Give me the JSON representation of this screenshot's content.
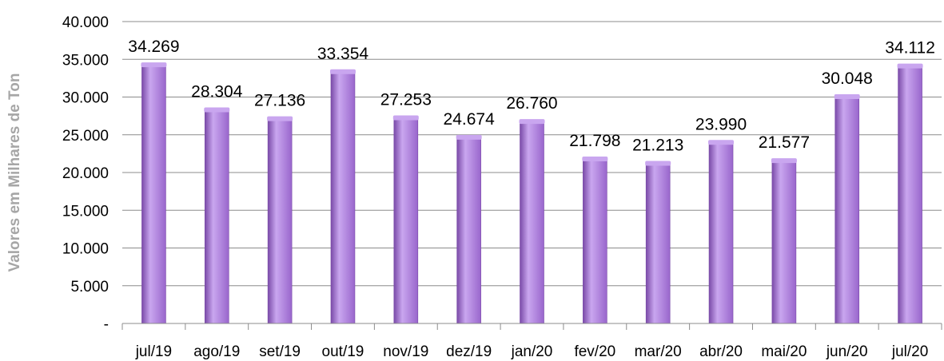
{
  "chart_data": {
    "type": "bar",
    "title": "",
    "xlabel": "",
    "ylabel": "Valores em Milhares de Ton",
    "ylim": [
      0,
      40000
    ],
    "yticks": [
      {
        "value": 0,
        "label": "-"
      },
      {
        "value": 5000,
        "label": "5.000"
      },
      {
        "value": 10000,
        "label": "10.000"
      },
      {
        "value": 15000,
        "label": "15.000"
      },
      {
        "value": 20000,
        "label": "20.000"
      },
      {
        "value": 25000,
        "label": "25.000"
      },
      {
        "value": 30000,
        "label": "30.000"
      },
      {
        "value": 35000,
        "label": "35.000"
      },
      {
        "value": 40000,
        "label": "40.000"
      }
    ],
    "categories": [
      "jul/19",
      "ago/19",
      "set/19",
      "out/19",
      "nov/19",
      "dez/19",
      "jan/20",
      "fev/20",
      "mar/20",
      "abr/20",
      "mai/20",
      "jun/20",
      "jul/20"
    ],
    "values": [
      34269,
      28304,
      27136,
      33354,
      27253,
      24674,
      26760,
      21798,
      21213,
      23990,
      21577,
      30048,
      34112
    ],
    "data_labels": [
      "34.269",
      "28.304",
      "27.136",
      "33.354",
      "27.253",
      "24.674",
      "26.760",
      "21.798",
      "21.213",
      "23.990",
      "21.577",
      "30.048",
      "34.112"
    ],
    "grid": true,
    "legend": "none",
    "colors": {
      "bar": "#9966cc",
      "bar_light": "#c9a6ef",
      "bar_dark": "#7a4aa8",
      "grid": "#8c8c8c",
      "axis": "#8c8c8c"
    }
  }
}
